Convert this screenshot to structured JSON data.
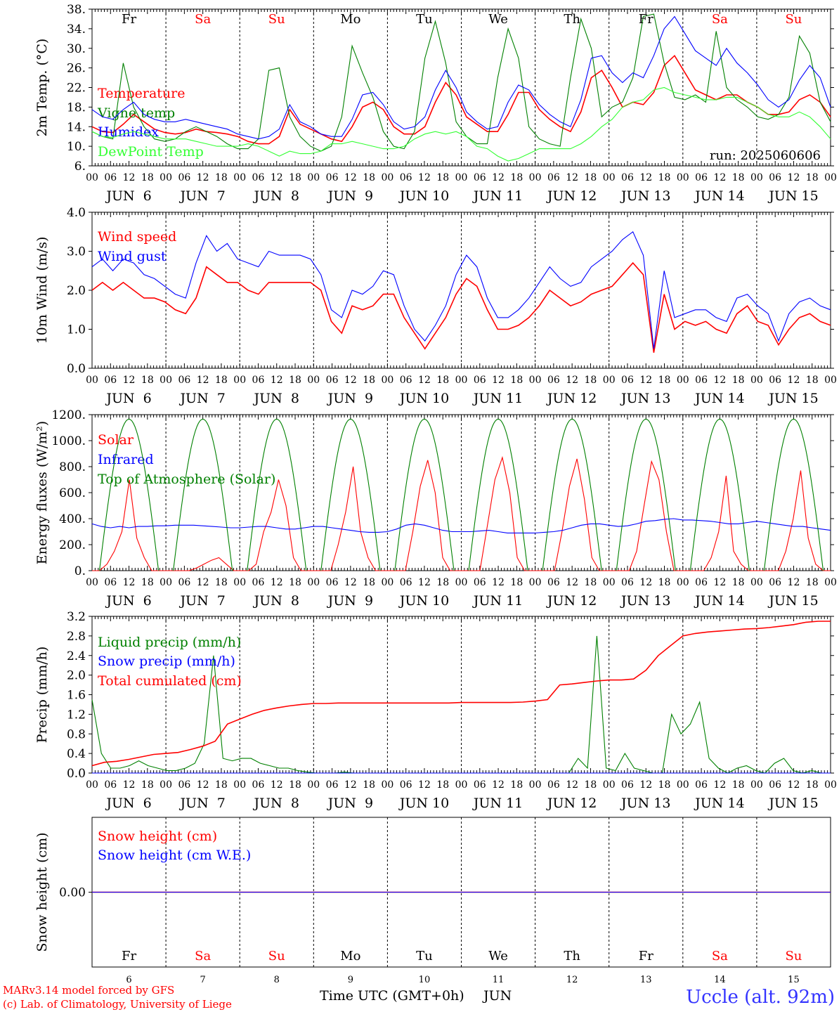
{
  "colors": {
    "red": "#ff0000",
    "darkgreen": "#008000",
    "blue": "#0000ff",
    "lightgreen": "#33ff33",
    "black": "#000000"
  },
  "days": {
    "top_labels": [
      "Fr",
      "Sa",
      "Su",
      "Mo",
      "Tu",
      "We",
      "Th",
      "Fr",
      "Sa",
      "Su"
    ],
    "bottom_labels": [
      "Fr",
      "Sa",
      "Su",
      "Mo",
      "Tu",
      "We",
      "Th",
      "Fr",
      "Sa",
      "Su"
    ],
    "weekend": [
      false,
      true,
      true,
      false,
      false,
      false,
      false,
      false,
      true,
      true
    ],
    "numbers": [
      "6",
      "7",
      "8",
      "9",
      "10",
      "11",
      "12",
      "13",
      "14",
      "15"
    ],
    "date_labels": [
      "JUN  6",
      "JUN  7",
      "JUN  8",
      "JUN  9",
      "JUN 10",
      "JUN 11",
      "JUN 12",
      "JUN 13",
      "JUN 14",
      "JUN 15"
    ],
    "hour_labels": [
      "00",
      "06",
      "12",
      "18"
    ],
    "final_hour": "00"
  },
  "footer": {
    "model": "MARv3.14 model forced by GFS",
    "lab": "(c) Lab. of Climatology, University of Liege",
    "xlabel": "Time UTC (GMT+0h)",
    "month": "JUN",
    "station": "Uccle (alt. 92m)"
  },
  "chart_data": [
    {
      "type": "line",
      "ylabel": "2m Temp. (°C)",
      "ylim": [
        6,
        38
      ],
      "yticks": [
        "6.",
        "10.",
        "14.",
        "18.",
        "22.",
        "26.",
        "30.",
        "34.",
        "38."
      ],
      "annotation": "run: 2025060606",
      "series": [
        {
          "name": "Temperature",
          "color": "red",
          "values": [
            14.0,
            13.0,
            12.8,
            14.5,
            16.5,
            15.0,
            13.5,
            12.8,
            12.5,
            12.8,
            13.5,
            13.0,
            12.8,
            12.5,
            12.0,
            11.0,
            10.5,
            10.5,
            12.0,
            17.5,
            14.5,
            13.5,
            12.5,
            11.5,
            11.0,
            14.0,
            18.0,
            19.0,
            17.5,
            14.0,
            12.5,
            12.5,
            14.0,
            19.0,
            23.0,
            20.5,
            16.0,
            14.5,
            13.0,
            13.0,
            16.5,
            21.0,
            21.0,
            17.5,
            15.5,
            14.0,
            13.0,
            17.0,
            24.0,
            25.5,
            22.0,
            18.0,
            19.0,
            18.5,
            21.0,
            26.5,
            28.5,
            25.0,
            21.5,
            20.5,
            19.5,
            20.5,
            20.5,
            19.0,
            18.0,
            16.5,
            16.5,
            17.0,
            19.5,
            20.5,
            19.0,
            16.0
          ]
        },
        {
          "name": "Vigne temp",
          "color": "darkgreen",
          "values": [
            13.0,
            12.0,
            11.5,
            27.0,
            18.0,
            14.0,
            11.5,
            11.0,
            11.5,
            13.0,
            14.0,
            13.0,
            12.0,
            10.5,
            9.5,
            9.5,
            11.5,
            25.5,
            26.0,
            16.0,
            12.0,
            10.0,
            9.0,
            10.0,
            16.0,
            30.5,
            25.0,
            20.0,
            13.0,
            10.0,
            9.5,
            13.0,
            28.0,
            35.5,
            27.0,
            15.0,
            12.0,
            10.5,
            10.5,
            24.0,
            34.0,
            28.0,
            14.0,
            11.5,
            10.5,
            10.0,
            24.0,
            36.0,
            30.0,
            16.0,
            18.0,
            19.0,
            24.0,
            36.5,
            37.0,
            27.0,
            20.0,
            19.5,
            20.5,
            19.0,
            33.5,
            22.0,
            19.5,
            18.0,
            16.0,
            15.5,
            16.5,
            20.0,
            32.5,
            29.0,
            19.0,
            15.0
          ]
        },
        {
          "name": "Humidex",
          "color": "blue",
          "values": [
            17.5,
            16.0,
            15.5,
            17.5,
            19.0,
            16.5,
            15.5,
            15.0,
            15.0,
            15.5,
            15.0,
            14.5,
            14.0,
            13.5,
            12.5,
            12.0,
            11.5,
            12.0,
            13.5,
            18.5,
            15.0,
            14.0,
            12.5,
            12.0,
            12.0,
            15.5,
            20.5,
            21.0,
            18.5,
            15.0,
            13.5,
            14.0,
            16.0,
            21.5,
            25.5,
            22.0,
            17.0,
            15.0,
            13.5,
            14.0,
            19.0,
            22.5,
            21.5,
            18.5,
            16.5,
            15.0,
            14.0,
            19.5,
            28.0,
            28.5,
            25.0,
            23.0,
            25.0,
            24.0,
            28.5,
            34.0,
            36.5,
            33.0,
            29.5,
            28.0,
            26.5,
            30.0,
            27.0,
            25.0,
            22.5,
            19.5,
            18.0,
            19.5,
            23.5,
            26.5,
            24.0,
            18.0
          ]
        },
        {
          "name": "DewPoint Temp",
          "color": "lightgreen",
          "values": [
            13.0,
            12.0,
            11.8,
            12.5,
            13.0,
            12.5,
            12.0,
            11.5,
            11.5,
            11.5,
            11.0,
            10.5,
            10.0,
            10.0,
            10.0,
            10.5,
            10.0,
            9.0,
            8.0,
            9.0,
            8.5,
            8.5,
            9.0,
            10.5,
            10.5,
            11.0,
            10.5,
            10.0,
            9.5,
            9.5,
            10.0,
            11.5,
            12.5,
            13.0,
            12.5,
            13.0,
            12.0,
            10.0,
            9.5,
            8.0,
            7.0,
            7.5,
            8.5,
            9.5,
            9.5,
            9.5,
            9.5,
            10.5,
            12.0,
            14.0,
            15.5,
            18.0,
            19.0,
            19.5,
            21.5,
            22.0,
            21.0,
            20.5,
            20.0,
            19.5,
            19.5,
            20.0,
            20.0,
            19.0,
            18.0,
            16.5,
            16.0,
            16.0,
            17.0,
            16.0,
            14.0,
            11.5
          ]
        }
      ],
      "legend_placement": "left"
    },
    {
      "type": "line",
      "ylabel": "10m Wind (m/s)",
      "ylim": [
        0,
        4
      ],
      "yticks": [
        "0.0",
        "1.0",
        "2.0",
        "3.0",
        "4.0"
      ],
      "series": [
        {
          "name": "Wind speed",
          "color": "red",
          "values": [
            2.0,
            2.2,
            2.0,
            2.2,
            2.0,
            1.8,
            1.8,
            1.7,
            1.5,
            1.4,
            1.8,
            2.6,
            2.4,
            2.2,
            2.2,
            2.0,
            1.9,
            2.2,
            2.2,
            2.2,
            2.2,
            2.2,
            2.0,
            1.2,
            0.9,
            1.6,
            1.5,
            1.6,
            1.9,
            1.9,
            1.3,
            0.9,
            0.5,
            0.9,
            1.3,
            1.9,
            2.3,
            2.1,
            1.5,
            1.0,
            1.0,
            1.1,
            1.3,
            1.6,
            2.0,
            1.8,
            1.6,
            1.7,
            1.9,
            2.0,
            2.1,
            2.4,
            2.7,
            2.4,
            0.4,
            1.9,
            1.0,
            1.2,
            1.1,
            1.2,
            1.0,
            0.9,
            1.4,
            1.6,
            1.2,
            1.1,
            0.6,
            1.0,
            1.3,
            1.4,
            1.2,
            1.1
          ]
        },
        {
          "name": "Wind gust",
          "color": "blue",
          "values": [
            2.6,
            2.8,
            2.5,
            2.8,
            2.7,
            2.4,
            2.3,
            2.1,
            1.9,
            1.8,
            2.7,
            3.4,
            3.0,
            3.2,
            2.8,
            2.7,
            2.6,
            3.0,
            2.9,
            2.9,
            2.9,
            2.8,
            2.4,
            1.5,
            1.3,
            2.0,
            1.9,
            2.1,
            2.5,
            2.4,
            1.6,
            1.0,
            0.7,
            1.1,
            1.6,
            2.4,
            2.9,
            2.6,
            1.8,
            1.3,
            1.3,
            1.5,
            1.8,
            2.2,
            2.6,
            2.3,
            2.1,
            2.2,
            2.6,
            2.8,
            3.0,
            3.3,
            3.5,
            2.9,
            0.5,
            2.5,
            1.3,
            1.4,
            1.5,
            1.5,
            1.3,
            1.2,
            1.8,
            1.9,
            1.6,
            1.4,
            0.7,
            1.4,
            1.7,
            1.8,
            1.6,
            1.5
          ]
        }
      ],
      "legend_placement": "left"
    },
    {
      "type": "line",
      "ylabel": "Energy fluxes (W/m²)",
      "ylim": [
        0,
        1200
      ],
      "yticks": [
        "0.",
        "200.",
        "400.",
        "600.",
        "800.",
        "1000.",
        "1200."
      ],
      "series": [
        {
          "name": "Solar",
          "color": "red",
          "values": [
            0,
            0,
            50,
            150,
            300,
            700,
            250,
            100,
            0,
            0,
            0,
            0,
            0,
            0,
            20,
            50,
            80,
            100,
            50,
            0,
            0,
            0,
            50,
            300,
            450,
            700,
            500,
            100,
            0,
            0,
            0,
            0,
            0,
            200,
            450,
            800,
            300,
            100,
            0,
            0,
            0,
            0,
            0,
            300,
            650,
            850,
            600,
            100,
            0,
            0,
            0,
            0,
            0,
            350,
            700,
            870,
            600,
            100,
            0,
            0,
            0,
            0,
            0,
            300,
            650,
            860,
            550,
            100,
            0,
            0,
            0,
            0,
            0,
            150,
            500,
            840,
            700,
            300,
            0,
            0,
            0,
            0,
            0,
            100,
            300,
            730,
            150,
            50,
            0,
            0,
            0,
            0,
            0,
            150,
            400,
            770,
            250,
            50,
            0,
            0
          ]
        },
        {
          "name": "Infrared",
          "color": "blue",
          "values": [
            360,
            340,
            330,
            340,
            330,
            340,
            340,
            345,
            345,
            350,
            350,
            350,
            345,
            340,
            335,
            330,
            330,
            335,
            340,
            340,
            330,
            320,
            320,
            330,
            340,
            340,
            330,
            320,
            310,
            300,
            295,
            295,
            300,
            320,
            350,
            360,
            350,
            330,
            310,
            300,
            300,
            300,
            305,
            310,
            300,
            290,
            290,
            290,
            290,
            295,
            300,
            310,
            330,
            350,
            360,
            360,
            350,
            340,
            345,
            360,
            380,
            385,
            395,
            400,
            390,
            390,
            385,
            380,
            370,
            360,
            360,
            370,
            380,
            370,
            360,
            350,
            340,
            340,
            330,
            320,
            310
          ]
        },
        {
          "name": "Top of Atmosphere (Solar)",
          "color": "darkgreen",
          "peak": 1165
        }
      ],
      "legend_placement": "left"
    },
    {
      "type": "line",
      "ylabel": "Precip (mm/h)",
      "ylim": [
        0,
        3.2
      ],
      "yticks": [
        "0.0",
        "0.4",
        "0.8",
        "1.2",
        "1.6",
        "2.0",
        "2.4",
        "2.8",
        "3.2"
      ],
      "series": [
        {
          "name": "Liquid precip (mm/h)",
          "color": "darkgreen",
          "values": [
            1.5,
            0.4,
            0.1,
            0.1,
            0.15,
            0.25,
            0.15,
            0.1,
            0.05,
            0.05,
            0.1,
            0.2,
            0.6,
            2.4,
            0.3,
            0.25,
            0.3,
            0.3,
            0.2,
            0.15,
            0.1,
            0.1,
            0.05,
            0.02,
            0.0,
            0.0,
            0.0,
            0.02,
            0.0,
            0.0,
            0.0,
            0.0,
            0.0,
            0.0,
            0.0,
            0.0,
            0.0,
            0.0,
            0.0,
            0.0,
            0.0,
            0.0,
            0.0,
            0.0,
            0.0,
            0.0,
            0.0,
            0.0,
            0.0,
            0.0,
            0.0,
            0.0,
            0.3,
            0.1,
            2.8,
            0.1,
            0.05,
            0.4,
            0.1,
            0.05,
            0.0,
            0.0,
            1.2,
            0.8,
            1.0,
            1.45,
            0.3,
            0.1,
            0.0,
            0.1,
            0.15,
            0.05,
            0.0,
            0.2,
            0.3,
            0.05,
            0.0,
            0.05,
            0.0,
            0.0
          ]
        },
        {
          "name": "Snow precip (mm/h)",
          "color": "blue",
          "values": [
            0,
            0,
            0,
            0,
            0,
            0,
            0,
            0,
            0,
            0,
            0
          ]
        },
        {
          "name": "Total cumulated (cm)",
          "color": "red",
          "values": [
            0.15,
            0.22,
            0.24,
            0.28,
            0.33,
            0.38,
            0.4,
            0.42,
            0.48,
            0.55,
            0.65,
            1.0,
            1.1,
            1.2,
            1.28,
            1.33,
            1.37,
            1.4,
            1.42,
            1.42,
            1.43,
            1.43,
            1.43,
            1.43,
            1.43,
            1.43,
            1.43,
            1.43,
            1.43,
            1.43,
            1.44,
            1.44,
            1.44,
            1.44,
            1.44,
            1.45,
            1.47,
            1.5,
            1.8,
            1.82,
            1.85,
            1.88,
            1.9,
            1.9,
            1.92,
            2.1,
            2.4,
            2.6,
            2.8,
            2.85,
            2.88,
            2.9,
            2.92,
            2.94,
            2.95,
            2.97,
            3.0,
            3.03,
            3.08,
            3.1,
            3.1
          ]
        }
      ],
      "legend_placement": "left"
    },
    {
      "type": "line",
      "ylabel": "Snow height (cm)",
      "yticks": [
        "0.00"
      ],
      "series": [
        {
          "name": "Snow height (cm)",
          "color": "red",
          "values": [
            0,
            0
          ]
        },
        {
          "name": "Snow height (cm W.E.)",
          "color": "blue",
          "values": [
            0,
            0
          ]
        }
      ],
      "legend_placement": "left"
    }
  ]
}
